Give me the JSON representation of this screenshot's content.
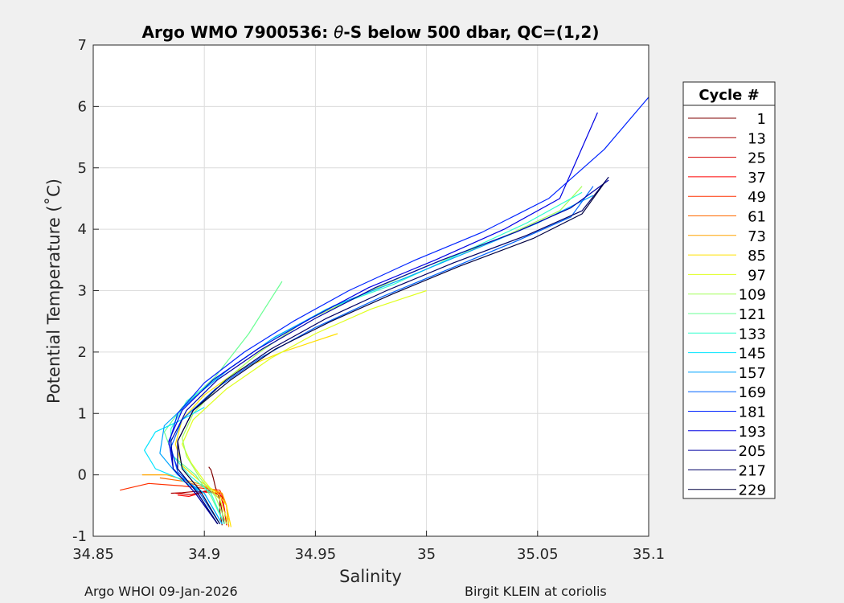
{
  "chart_data": {
    "type": "line",
    "title": "Argo WMO 7900536: θ-S below 500 dbar,  QC=(1,2)",
    "title_prefix": "Argo WMO 7900536: ",
    "title_theta": "θ",
    "title_suffix": "-S below 500 dbar,  QC=(1,2)",
    "xlabel": "Salinity",
    "ylabel": "Potential Temperature (˚C)",
    "xlim": [
      34.85,
      35.1
    ],
    "ylim": [
      -1,
      7
    ],
    "xticks": [
      34.85,
      34.9,
      34.95,
      35,
      35.05,
      35.1
    ],
    "xtick_labels": [
      "34.85",
      "34.9",
      "34.95",
      "35",
      "35.05",
      "35.1"
    ],
    "yticks": [
      -1,
      0,
      1,
      2,
      3,
      4,
      5,
      6,
      7
    ],
    "ytick_labels": [
      "-1",
      "0",
      "1",
      "2",
      "3",
      "4",
      "5",
      "6",
      "7"
    ],
    "grid": true,
    "legend_title": "Cycle #",
    "legend_position": "outside-right",
    "series": [
      {
        "name": "1",
        "color": "#7f0000",
        "salinity": [
          34.908,
          34.907,
          34.907,
          34.905,
          34.904,
          34.903,
          34.902
        ],
        "theta": [
          -0.82,
          -0.6,
          -0.4,
          -0.2,
          -0.05,
          0.08,
          0.13
        ]
      },
      {
        "name": "13",
        "color": "#a80000",
        "salinity": [
          34.909,
          34.908,
          34.907,
          34.904,
          34.896,
          34.89,
          34.885
        ],
        "theta": [
          -0.8,
          -0.6,
          -0.4,
          -0.28,
          -0.27,
          -0.29,
          -0.3
        ]
      },
      {
        "name": "25",
        "color": "#d40000",
        "salinity": [
          34.91,
          34.909,
          34.908,
          34.902,
          34.894,
          34.887
        ],
        "theta": [
          -0.8,
          -0.55,
          -0.35,
          -0.25,
          -0.32,
          -0.3
        ]
      },
      {
        "name": "37",
        "color": "#ff0000",
        "salinity": [
          34.91,
          34.909,
          34.907,
          34.9,
          34.893,
          34.888
        ],
        "theta": [
          -0.82,
          -0.55,
          -0.3,
          -0.28,
          -0.35,
          -0.33
        ]
      },
      {
        "name": "49",
        "color": "#ff3000",
        "salinity": [
          34.911,
          34.91,
          34.907,
          34.89,
          34.875,
          34.862
        ],
        "theta": [
          -0.83,
          -0.5,
          -0.25,
          -0.18,
          -0.14,
          -0.25
        ]
      },
      {
        "name": "61",
        "color": "#ff6a00",
        "salinity": [
          34.911,
          34.91,
          34.908,
          34.9,
          34.89,
          34.88
        ],
        "theta": [
          -0.84,
          -0.5,
          -0.3,
          -0.2,
          -0.1,
          -0.05
        ]
      },
      {
        "name": "73",
        "color": "#ffa400",
        "salinity": [
          34.911,
          34.91,
          34.908,
          34.898,
          34.883,
          34.872
        ],
        "theta": [
          -0.85,
          -0.5,
          -0.3,
          -0.15,
          0.0,
          0.0
        ]
      },
      {
        "name": "85",
        "color": "#ffe000",
        "salinity": [
          34.912,
          34.91,
          34.906,
          34.898,
          34.89,
          34.887,
          34.89,
          34.9,
          34.915,
          34.935,
          34.96
        ],
        "theta": [
          -0.85,
          -0.5,
          -0.3,
          -0.1,
          0.15,
          0.5,
          0.9,
          1.3,
          1.7,
          2.0,
          2.3
        ]
      },
      {
        "name": "97",
        "color": "#e0ff1f",
        "salinity": [
          34.911,
          34.907,
          34.9,
          34.894,
          34.89,
          34.895,
          34.91,
          34.93,
          34.95,
          34.975,
          35.0
        ],
        "theta": [
          -0.8,
          -0.4,
          -0.1,
          0.2,
          0.5,
          0.9,
          1.4,
          1.9,
          2.3,
          2.7,
          3.0
        ]
      },
      {
        "name": "109",
        "color": "#a4ff5a",
        "salinity": [
          34.91,
          34.905,
          34.898,
          34.892,
          34.89,
          34.895,
          34.908,
          34.925,
          34.945,
          34.975,
          35.0,
          35.03,
          35.06,
          35.07
        ],
        "theta": [
          -0.8,
          -0.35,
          -0.05,
          0.3,
          0.6,
          1.0,
          1.5,
          2.0,
          2.5,
          3.0,
          3.4,
          3.8,
          4.3,
          4.7
        ]
      },
      {
        "name": "121",
        "color": "#6aff94",
        "salinity": [
          34.909,
          34.903,
          34.896,
          34.886,
          34.882,
          34.89,
          34.905,
          34.92,
          34.935
        ],
        "theta": [
          -0.8,
          -0.35,
          0.0,
          0.3,
          0.7,
          1.1,
          1.6,
          2.3,
          3.15
        ]
      },
      {
        "name": "133",
        "color": "#30ffce",
        "salinity": [
          34.909,
          34.903,
          34.893,
          34.885,
          34.885,
          34.892,
          34.91,
          34.93,
          34.955,
          34.985,
          35.015,
          35.045,
          35.07
        ],
        "theta": [
          -0.8,
          -0.3,
          0.0,
          0.35,
          0.75,
          1.2,
          1.7,
          2.2,
          2.7,
          3.1,
          3.6,
          4.1,
          4.6
        ]
      },
      {
        "name": "145",
        "color": "#00e4ff",
        "salinity": [
          34.908,
          34.9,
          34.888,
          34.878,
          34.873,
          34.878,
          34.89,
          34.9
        ],
        "theta": [
          -0.8,
          -0.3,
          -0.05,
          0.1,
          0.4,
          0.7,
          0.9,
          1.1
        ]
      },
      {
        "name": "157",
        "color": "#00a4ff",
        "salinity": [
          34.908,
          34.9,
          34.888,
          34.88,
          34.882,
          34.895,
          34.912,
          34.932,
          34.958,
          34.99,
          35.02,
          35.05,
          35.075
        ],
        "theta": [
          -0.8,
          -0.3,
          0.0,
          0.35,
          0.8,
          1.25,
          1.75,
          2.25,
          2.75,
          3.2,
          3.65,
          4.1,
          4.55
        ]
      },
      {
        "name": "169",
        "color": "#0064ff",
        "salinity": [
          34.907,
          34.898,
          34.888,
          34.885,
          34.89,
          34.905,
          34.925,
          34.95,
          34.98,
          35.01,
          35.04,
          35.065,
          35.075
        ],
        "theta": [
          -0.8,
          -0.3,
          0.05,
          0.45,
          0.9,
          1.4,
          1.9,
          2.4,
          2.9,
          3.35,
          3.8,
          4.2,
          4.7
        ]
      },
      {
        "name": "181",
        "color": "#0024ff",
        "salinity": [
          34.906,
          34.897,
          34.888,
          34.884,
          34.888,
          34.9,
          34.918,
          34.94,
          34.965,
          34.995,
          35.025,
          35.055,
          35.08,
          35.1
        ],
        "theta": [
          -0.8,
          -0.3,
          0.1,
          0.5,
          1.0,
          1.5,
          2.0,
          2.5,
          3.0,
          3.5,
          3.95,
          4.5,
          5.3,
          6.15
        ]
      },
      {
        "name": "193",
        "color": "#0000e4",
        "salinity": [
          34.906,
          34.896,
          34.886,
          34.884,
          34.89,
          34.904,
          34.924,
          34.948,
          34.974,
          35.004,
          35.035,
          35.06,
          35.077
        ],
        "theta": [
          -0.8,
          -0.3,
          0.1,
          0.55,
          1.05,
          1.55,
          2.05,
          2.55,
          3.05,
          3.5,
          4.0,
          4.5,
          5.9
        ]
      },
      {
        "name": "205",
        "color": "#0000a4",
        "salinity": [
          34.906,
          34.896,
          34.886,
          34.885,
          34.892,
          34.906,
          34.926,
          34.95,
          34.977,
          35.007,
          35.04,
          35.065,
          35.082
        ],
        "theta": [
          -0.8,
          -0.3,
          0.1,
          0.55,
          1.05,
          1.55,
          2.05,
          2.55,
          3.05,
          3.5,
          3.95,
          4.35,
          4.8
        ]
      },
      {
        "name": "217",
        "color": "#000064",
        "salinity": [
          34.906,
          34.897,
          34.888,
          34.888,
          34.895,
          34.91,
          34.93,
          34.955,
          34.982,
          35.012,
          35.045,
          35.07,
          35.082
        ],
        "theta": [
          -0.8,
          -0.3,
          0.1,
          0.55,
          1.05,
          1.55,
          2.05,
          2.55,
          3.0,
          3.45,
          3.9,
          4.3,
          4.85
        ]
      },
      {
        "name": "229",
        "color": "#000040",
        "salinity": [
          34.907,
          34.898,
          34.89,
          34.888,
          34.895,
          34.912,
          34.932,
          34.957,
          34.985,
          35.015,
          35.048,
          35.07,
          35.08
        ],
        "theta": [
          -0.8,
          -0.25,
          0.1,
          0.55,
          1.05,
          1.55,
          2.05,
          2.5,
          2.95,
          3.4,
          3.85,
          4.25,
          4.75
        ]
      }
    ]
  },
  "footer": {
    "left": "Argo WHOI 09-Jan-2026",
    "right": "Birgit KLEIN at coriolis"
  }
}
